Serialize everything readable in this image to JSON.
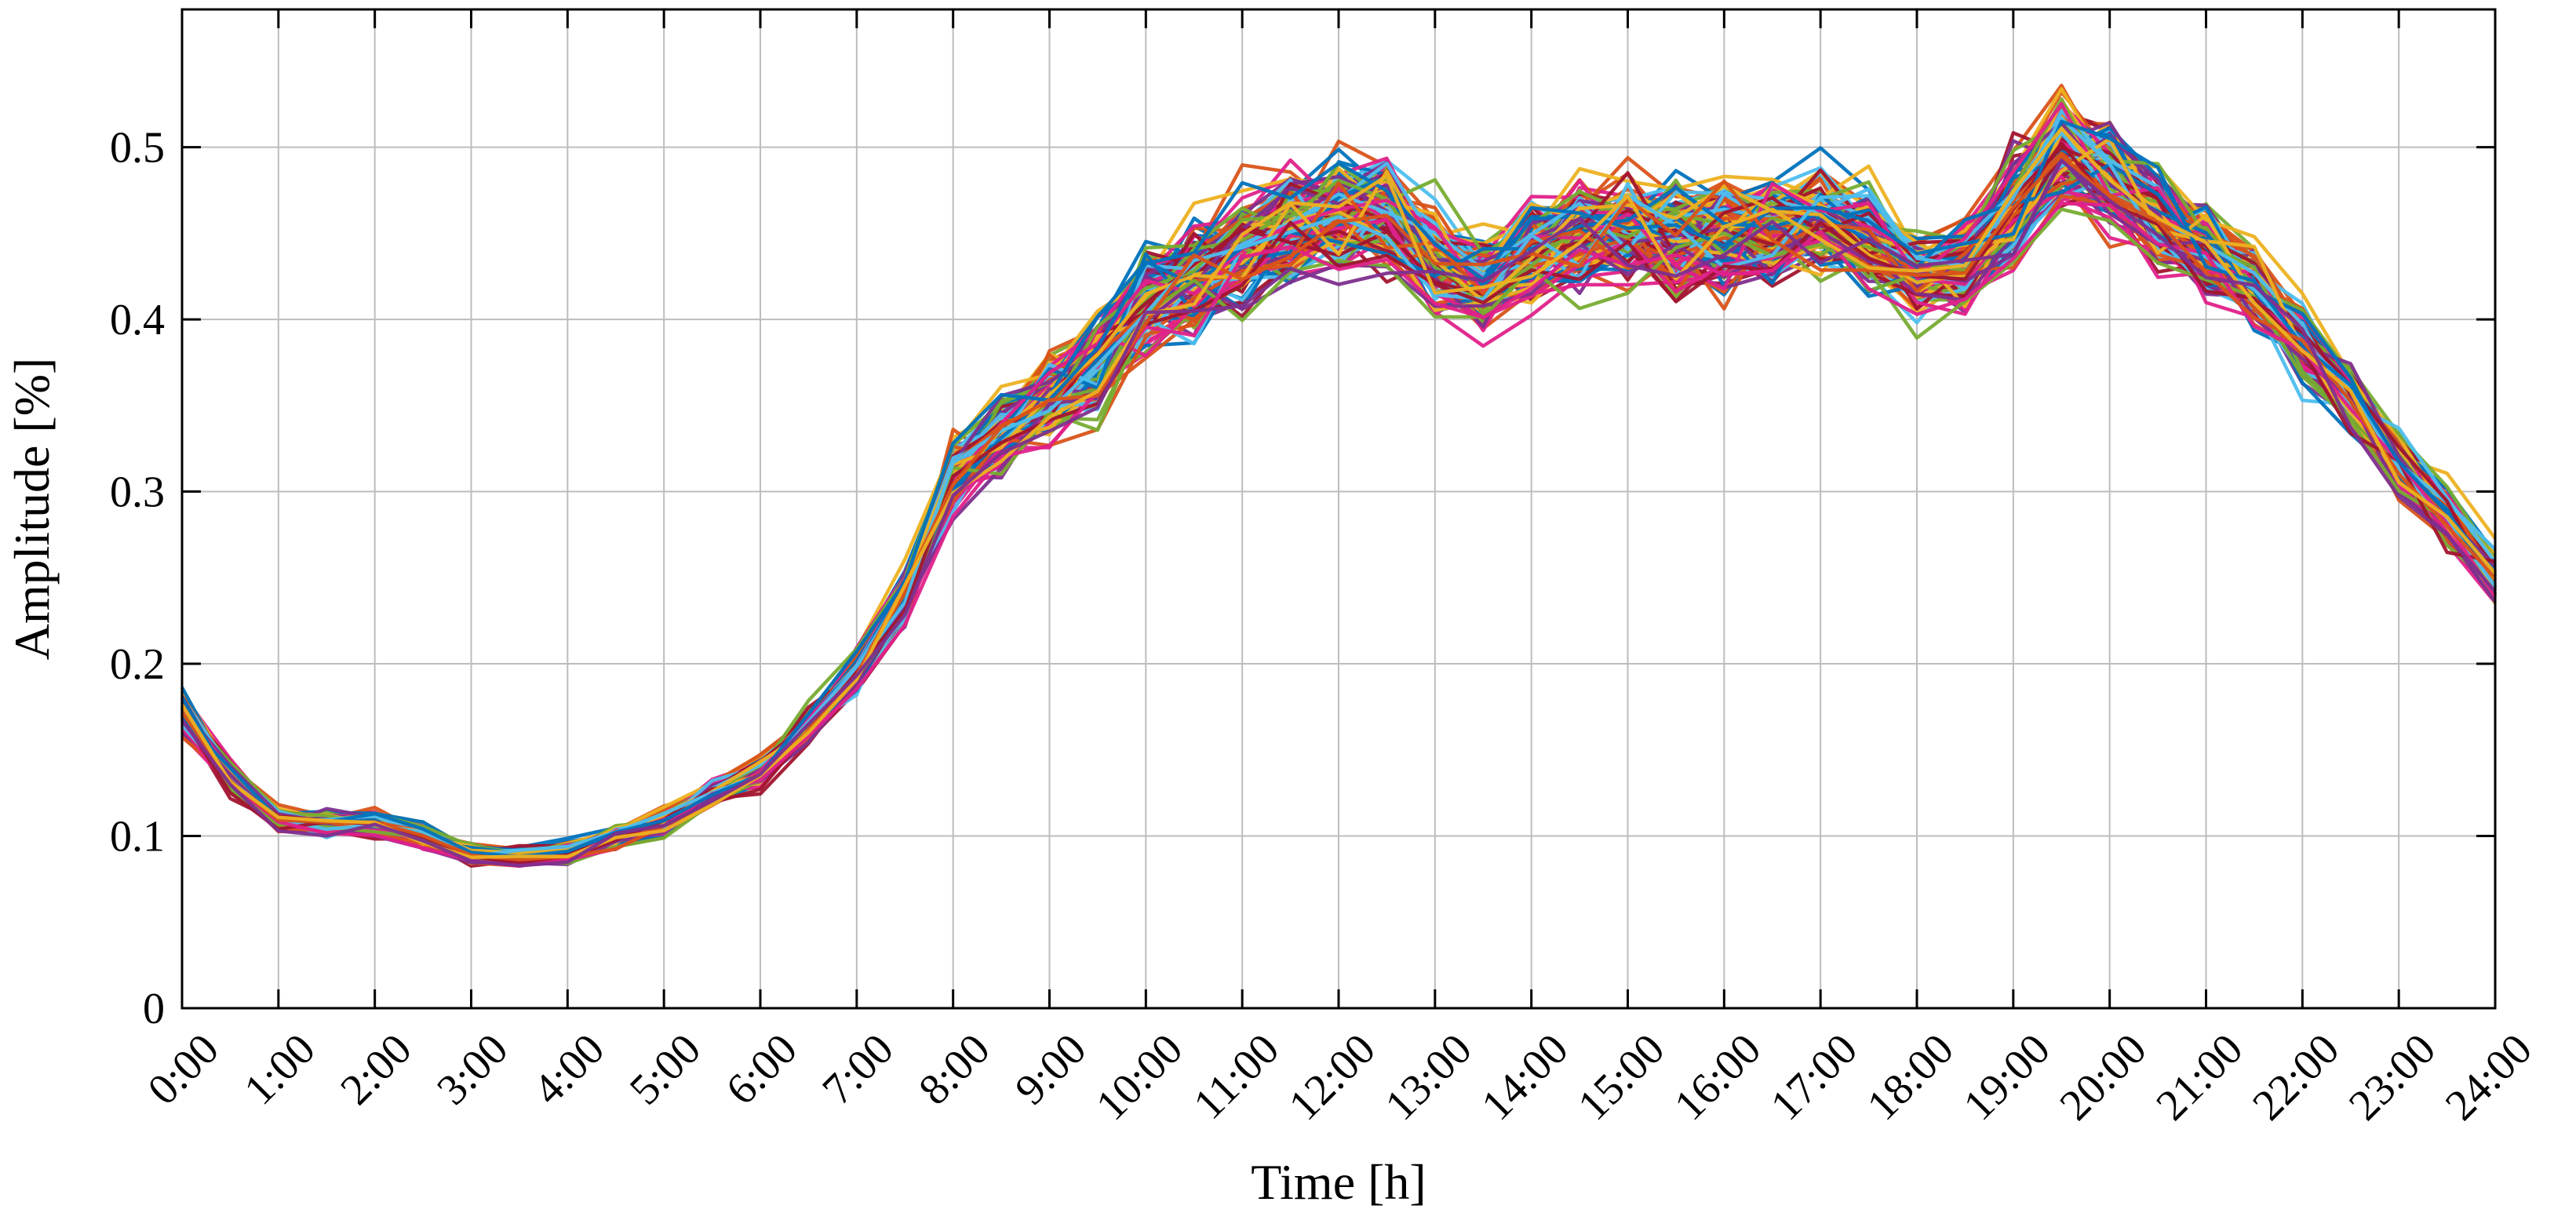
{
  "chart_data": {
    "type": "line",
    "xlabel": "Time [h]",
    "ylabel": "Amplitude [%]",
    "xlim": [
      0,
      24
    ],
    "ylim": [
      0,
      0.58
    ],
    "x_ticks": [
      0,
      1,
      2,
      3,
      4,
      5,
      6,
      7,
      8,
      9,
      10,
      11,
      12,
      13,
      14,
      15,
      16,
      17,
      18,
      19,
      20,
      21,
      22,
      23,
      24
    ],
    "x_tick_labels": [
      "0:00",
      "1:00",
      "2:00",
      "3:00",
      "4:00",
      "5:00",
      "6:00",
      "7:00",
      "8:00",
      "9:00",
      "10:00",
      "11:00",
      "12:00",
      "13:00",
      "14:00",
      "15:00",
      "16:00",
      "17:00",
      "18:00",
      "19:00",
      "20:00",
      "21:00",
      "22:00",
      "23:00",
      "24:00"
    ],
    "y_ticks": [
      0,
      0.1,
      0.2,
      0.3,
      0.4,
      0.5
    ],
    "y_tick_labels": [
      "0",
      "0.1",
      "0.2",
      "0.3",
      "0.4",
      "0.5"
    ],
    "grid": true,
    "legend": "none",
    "series_count": 140,
    "colors": [
      "#0072BD",
      "#D95319",
      "#EDB120",
      "#7E2F8E",
      "#77AC30",
      "#4DBEEE",
      "#A2142F",
      "#E0218A"
    ],
    "x": [
      0,
      0.5,
      1,
      1.5,
      2,
      2.5,
      3,
      3.5,
      4,
      4.5,
      5,
      5.5,
      6,
      6.5,
      7,
      7.5,
      8,
      8.5,
      9,
      9.5,
      10,
      10.5,
      11,
      11.5,
      12,
      12.5,
      13,
      13.5,
      14,
      14.5,
      15,
      15.5,
      16,
      16.5,
      17,
      17.5,
      18,
      18.5,
      19,
      19.5,
      20,
      20.5,
      21,
      21.5,
      22,
      22.5,
      23,
      23.5,
      24
    ],
    "mean_profile": [
      0.172,
      0.135,
      0.11,
      0.108,
      0.108,
      0.1,
      0.09,
      0.088,
      0.09,
      0.1,
      0.108,
      0.125,
      0.138,
      0.165,
      0.195,
      0.24,
      0.31,
      0.335,
      0.355,
      0.375,
      0.41,
      0.425,
      0.44,
      0.455,
      0.465,
      0.465,
      0.435,
      0.42,
      0.44,
      0.45,
      0.455,
      0.45,
      0.45,
      0.455,
      0.455,
      0.45,
      0.425,
      0.43,
      0.465,
      0.5,
      0.485,
      0.46,
      0.44,
      0.42,
      0.385,
      0.355,
      0.315,
      0.285,
      0.25
    ],
    "spread": [
      0.012,
      0.01,
      0.007,
      0.007,
      0.007,
      0.006,
      0.006,
      0.006,
      0.006,
      0.007,
      0.007,
      0.008,
      0.009,
      0.01,
      0.012,
      0.016,
      0.022,
      0.025,
      0.028,
      0.03,
      0.032,
      0.034,
      0.036,
      0.036,
      0.036,
      0.036,
      0.032,
      0.03,
      0.032,
      0.034,
      0.034,
      0.034,
      0.034,
      0.034,
      0.034,
      0.032,
      0.03,
      0.03,
      0.034,
      0.036,
      0.032,
      0.03,
      0.026,
      0.024,
      0.022,
      0.02,
      0.018,
      0.016,
      0.015
    ]
  }
}
